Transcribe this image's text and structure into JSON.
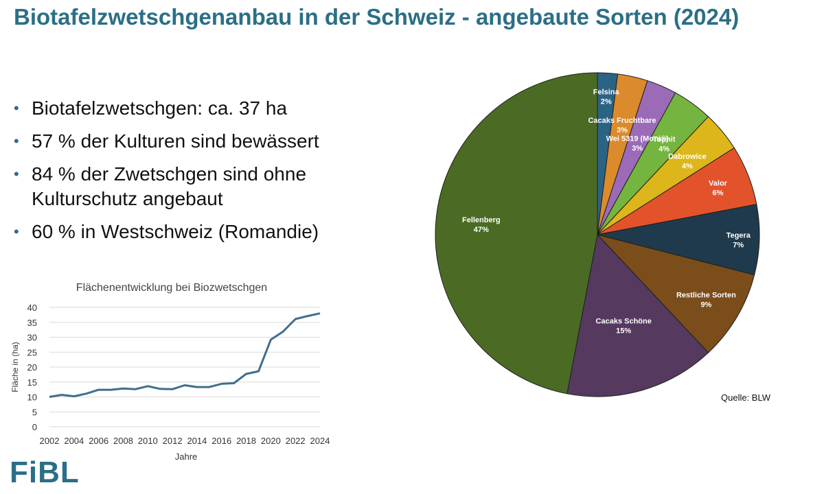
{
  "page": {
    "title": "Biotafelzwetschgenanbau in der Schweiz - angebaute Sorten (2024)",
    "bullets": [
      "Biotafelzwetschgen: ca. 37 ha",
      "57 % der Kulturen sind bewässert",
      "84 % der Zwetschgen sind ohne Kulturschutz angebaut",
      "60 % in Westschweiz (Romandie)"
    ],
    "source": "Quelle: BLW",
    "logo": "FiBL"
  },
  "chart_data": [
    {
      "type": "line",
      "title": "Flächenentwicklung bei Biozwetschgen",
      "xlabel": "Jahre",
      "ylabel": "Fläche in (ha)",
      "ylim": [
        0,
        40
      ],
      "yticks": [
        0,
        5,
        10,
        15,
        20,
        25,
        30,
        35,
        40
      ],
      "xticks": [
        "2002",
        "2004",
        "2006",
        "2008",
        "2010",
        "2012",
        "2014",
        "2016",
        "2018",
        "2020",
        "2022",
        "2024"
      ],
      "grid": true,
      "color": "#3f6e8a",
      "x": [
        2002,
        2003,
        2004,
        2005,
        2006,
        2007,
        2008,
        2009,
        2010,
        2011,
        2012,
        2013,
        2014,
        2015,
        2016,
        2017,
        2018,
        2019,
        2020,
        2021,
        2022,
        2023,
        2024
      ],
      "values": [
        10,
        10.7,
        10.2,
        11.1,
        12.4,
        12.4,
        12.8,
        12.6,
        13.6,
        12.7,
        12.6,
        13.9,
        13.3,
        13.3,
        14.4,
        14.6,
        17.7,
        18.6,
        29.2,
        31.9,
        36.1,
        37.1,
        38
      ]
    },
    {
      "type": "pie",
      "slices": [
        {
          "label": "Felsina",
          "pct_label": "2%",
          "value": 2,
          "color": "#2b6384"
        },
        {
          "label": "Cacaks Fruchtbare",
          "pct_label": "3%",
          "value": 3,
          "color": "#db8a2c"
        },
        {
          "label": "Wei 5319 (Moni®)",
          "pct_label": "3%",
          "value": 3,
          "color": "#9b6bb8"
        },
        {
          "label": "Tophit",
          "pct_label": "4%",
          "value": 4,
          "color": "#74b43f"
        },
        {
          "label": "Dabrowice",
          "pct_label": "4%",
          "value": 4,
          "color": "#dcb61a"
        },
        {
          "label": "Valor",
          "pct_label": "6%",
          "value": 6,
          "color": "#e2532b"
        },
        {
          "label": "Tegera",
          "pct_label": "7%",
          "value": 7,
          "color": "#1f3a4c"
        },
        {
          "label": "Restliche Sorten",
          "pct_label": "9%",
          "value": 9,
          "color": "#7a4d1a"
        },
        {
          "label": "Cacaks Schöne",
          "pct_label": "15%",
          "value": 15,
          "color": "#55395f"
        },
        {
          "label": "Fellenberg",
          "pct_label": "47%",
          "value": 47,
          "color": "#4b6b25"
        }
      ]
    }
  ]
}
